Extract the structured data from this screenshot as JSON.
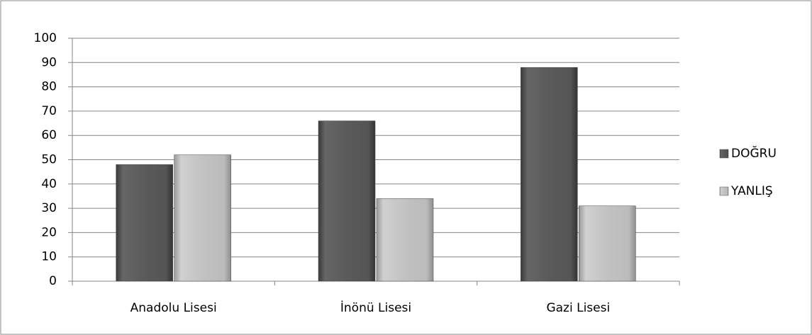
{
  "chart_data": {
    "type": "bar",
    "categories": [
      "Anadolu Lisesi",
      "İnönü Lisesi",
      "Gazi Lisesi"
    ],
    "series": [
      {
        "name": "DOĞRU",
        "color": "#555555",
        "values": [
          48,
          66,
          88
        ]
      },
      {
        "name": "YANLIŞ",
        "color": "#bdbdbd",
        "values": [
          52,
          34,
          31
        ]
      }
    ],
    "ylim": [
      0,
      100
    ],
    "yticks": [
      0,
      10,
      20,
      30,
      40,
      50,
      60,
      70,
      80,
      90,
      100
    ],
    "grid": true,
    "legend": "right"
  }
}
